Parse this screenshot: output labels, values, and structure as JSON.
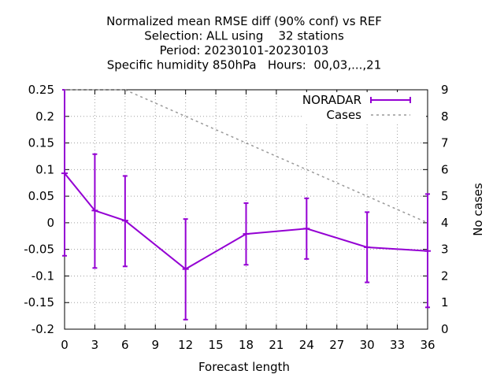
{
  "chart_data": {
    "type": "line",
    "title_lines": [
      "Normalized mean RMSE diff (90% conf) vs REF",
      "Selection: ALL using    32 stations",
      "Period: 20230101-20230103",
      "Specific humidity 850hPa   Hours:  00,03,...,21"
    ],
    "xlabel": "Forecast length",
    "ylabel": "",
    "y2label": "No cases",
    "xlim": [
      0,
      36
    ],
    "ylim": [
      -0.2,
      0.25
    ],
    "y2lim": [
      0,
      9
    ],
    "x_ticks": [
      0,
      3,
      6,
      9,
      12,
      15,
      18,
      21,
      24,
      27,
      30,
      33,
      36
    ],
    "y_ticks": [
      -0.2,
      -0.15,
      -0.1,
      -0.05,
      0,
      0.05,
      0.1,
      0.15,
      0.2,
      0.25
    ],
    "y2_ticks": [
      0,
      1,
      2,
      3,
      4,
      5,
      6,
      7,
      8,
      9
    ],
    "x_tick_labels": [
      "0",
      "3",
      "6",
      "9",
      "12",
      "15",
      "18",
      "21",
      "24",
      "27",
      "30",
      "33",
      "36"
    ],
    "y_tick_labels": [
      "-0.2",
      "-0.15",
      "-0.1",
      "-0.05",
      "0",
      "0.05",
      "0.1",
      "0.15",
      "0.2",
      "0.25"
    ],
    "y2_tick_labels": [
      "0",
      "1",
      "2",
      "3",
      "4",
      "5",
      "6",
      "7",
      "8",
      "9"
    ],
    "grid": true,
    "legend_position": "top-right",
    "series": [
      {
        "name": "NORADAR",
        "axis": "y",
        "color": "#9400d3",
        "style": "line-errorbars",
        "x": [
          0,
          3,
          6,
          12,
          18,
          24,
          30,
          36
        ],
        "values": [
          0.093,
          0.023,
          0.004,
          -0.087,
          -0.021,
          -0.011,
          -0.046,
          -0.053
        ],
        "err_low": [
          -0.062,
          -0.085,
          -0.082,
          -0.182,
          -0.079,
          -0.068,
          -0.112,
          -0.159
        ],
        "err_high": [
          0.25,
          0.129,
          0.088,
          0.007,
          0.037,
          0.046,
          0.02,
          0.054
        ]
      },
      {
        "name": "Cases",
        "axis": "y2",
        "color": "#999999",
        "style": "dashed",
        "x": [
          0,
          6,
          12,
          18,
          24,
          30,
          36
        ],
        "values": [
          9,
          9,
          8,
          7,
          6,
          5,
          4
        ]
      }
    ]
  }
}
